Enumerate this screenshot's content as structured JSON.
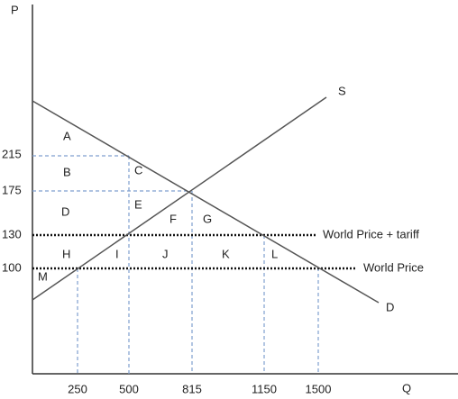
{
  "axes": {
    "y_label": "P",
    "x_label": "Q",
    "y_ticks": [
      "215",
      "175",
      "130",
      "100"
    ],
    "x_ticks": [
      "250",
      "500",
      "815",
      "1150",
      "1500"
    ]
  },
  "curves": {
    "supply": "S",
    "demand": "D"
  },
  "price_lines": {
    "tariff": "World Price + tariff",
    "world": "World Price"
  },
  "regions": [
    "A",
    "B",
    "C",
    "D",
    "E",
    "F",
    "G",
    "H",
    "I",
    "J",
    "K",
    "L",
    "M"
  ]
}
